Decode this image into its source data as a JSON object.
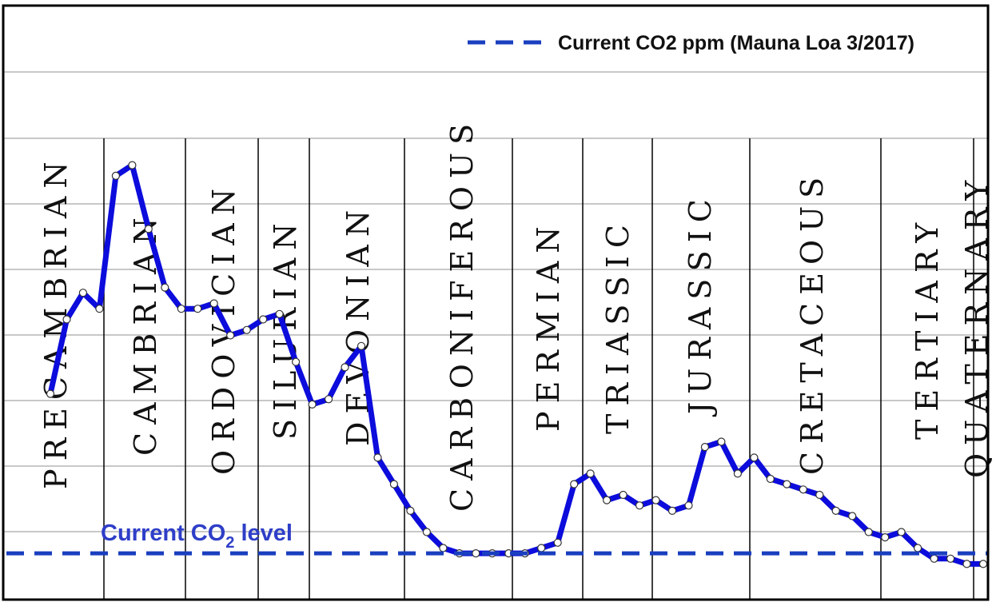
{
  "chart_data": {
    "type": "line",
    "periods": [
      "PRECAMBRIAN",
      "CAMBRIAN",
      "ORDOVICIAN",
      "SILURIAN",
      "DEVONIAN",
      "CARBONIFEROUS",
      "PERMIAN",
      "TRIASSIC",
      "JURASSIC",
      "CRETACEOUS",
      "TERTIARY",
      "QUATERNARY"
    ],
    "legend": {
      "label": "Current CO2 ppm (Mauna Loa 3/2017)",
      "position": "top-right"
    },
    "annotation": {
      "text_main": "Current CO",
      "text_sub": "2",
      "text_tail": " level"
    },
    "current_level": 0.06,
    "ylim": [
      0,
      1
    ],
    "grid": true,
    "series": [
      {
        "values": [
          0.36,
          0.5,
          0.55,
          0.52,
          0.77,
          0.79,
          0.67,
          0.56,
          0.52,
          0.52,
          0.53,
          0.47,
          0.48,
          0.5,
          0.51,
          0.42,
          0.34,
          0.35,
          0.41,
          0.45,
          0.24,
          0.19,
          0.14,
          0.1,
          0.07,
          0.06,
          0.06,
          0.06,
          0.06,
          0.06,
          0.07,
          0.08,
          0.19,
          0.21,
          0.16,
          0.17,
          0.15,
          0.16,
          0.14,
          0.15,
          0.26,
          0.27,
          0.21,
          0.24,
          0.2,
          0.19,
          0.18,
          0.17,
          0.14,
          0.13,
          0.1,
          0.09,
          0.1,
          0.07,
          0.05,
          0.05,
          0.04,
          0.04
        ]
      }
    ],
    "colors": {
      "line": "#0c0cdc",
      "dashed": "#1a3fbf",
      "annotation": "#2e3ec8",
      "grid": "#c8c8c8",
      "border": "#000000"
    }
  }
}
